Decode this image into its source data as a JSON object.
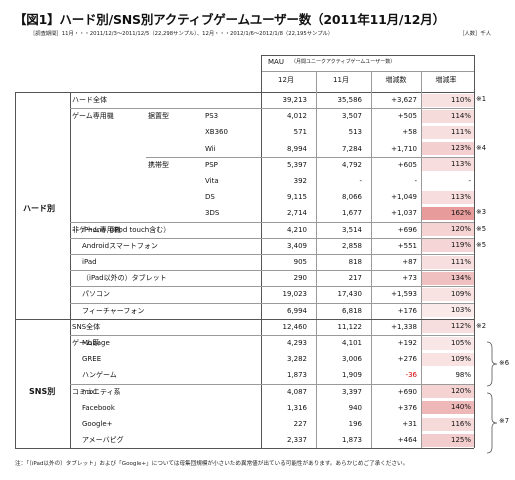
{
  "title": "【図1】ハード別/SNS別アクティブゲームユーザー数（2011年11月/12月）",
  "period": "［調査期間］11月・・・2011/12/3〜2011/12/5（22,298サンプル）、12月・・・2012/1/6〜2012/1/8（22,195サンプル）",
  "unit": "［人数］千人",
  "header": {
    "mau": "MAU",
    "mau_note": "（月間ユニークアクティブゲームユーザー数）",
    "dec": "12月",
    "nov": "11月",
    "diff": "増減数",
    "ratio": "増減率"
  },
  "groups": {
    "hard": "ハード別",
    "sns": "SNS別"
  },
  "rows": [
    {
      "l1": "ハード全体",
      "l2": "",
      "l3": "",
      "dec": "39,213",
      "nov": "35,586",
      "diff": "+3,627",
      "ratio": "110%",
      "r": 1.1,
      "note": "※1"
    },
    {
      "l1": "ゲーム専用機",
      "l2": "据置型",
      "l3": "PS3",
      "dec": "4,012",
      "nov": "3,507",
      "diff": "+505",
      "ratio": "114%",
      "r": 1.14,
      "note": ""
    },
    {
      "l1": "",
      "l2": "",
      "l3": "XB360",
      "dec": "571",
      "nov": "513",
      "diff": "+58",
      "ratio": "111%",
      "r": 1.11,
      "note": ""
    },
    {
      "l1": "",
      "l2": "",
      "l3": "Wii",
      "dec": "8,994",
      "nov": "7,284",
      "diff": "+1,710",
      "ratio": "123%",
      "r": 1.23,
      "note": "※4"
    },
    {
      "l1": "",
      "l2": "携帯型",
      "l3": "PSP",
      "dec": "5,397",
      "nov": "4,792",
      "diff": "+605",
      "ratio": "113%",
      "r": 1.13,
      "note": ""
    },
    {
      "l1": "",
      "l2": "",
      "l3": "Vita",
      "dec": "392",
      "nov": "-",
      "diff": "-",
      "ratio": "-",
      "r": 0,
      "note": ""
    },
    {
      "l1": "",
      "l2": "",
      "l3": "DS",
      "dec": "9,115",
      "nov": "8,066",
      "diff": "+1,049",
      "ratio": "113%",
      "r": 1.13,
      "note": ""
    },
    {
      "l1": "",
      "l2": "",
      "l3": "3DS",
      "dec": "2,714",
      "nov": "1,677",
      "diff": "+1,037",
      "ratio": "162%",
      "r": 1.62,
      "note": "※3"
    },
    {
      "l1": "非ゲーム専用機",
      "l2": "iPhone（iPod touch含む）",
      "l3": "",
      "dec": "4,210",
      "nov": "3,514",
      "diff": "+696",
      "ratio": "120%",
      "r": 1.2,
      "note": "※5"
    },
    {
      "l1": "",
      "l2": "Androidスマートフォン",
      "l3": "",
      "dec": "3,409",
      "nov": "2,858",
      "diff": "+551",
      "ratio": "119%",
      "r": 1.19,
      "note": "※5"
    },
    {
      "l1": "",
      "l2": "iPad",
      "l3": "",
      "dec": "905",
      "nov": "818",
      "diff": "+87",
      "ratio": "111%",
      "r": 1.11,
      "note": ""
    },
    {
      "l1": "",
      "l2": "（iPad以外の）タブレット",
      "l3": "",
      "dec": "290",
      "nov": "217",
      "diff": "+73",
      "ratio": "134%",
      "r": 1.34,
      "note": ""
    },
    {
      "l1": "",
      "l2": "パソコン",
      "l3": "",
      "dec": "19,023",
      "nov": "17,430",
      "diff": "+1,593",
      "ratio": "109%",
      "r": 1.09,
      "note": ""
    },
    {
      "l1": "",
      "l2": "フィーチャーフォン",
      "l3": "",
      "dec": "6,994",
      "nov": "6,818",
      "diff": "+176",
      "ratio": "103%",
      "r": 1.03,
      "note": ""
    },
    {
      "l1": "SNS全体",
      "l2": "",
      "l3": "",
      "dec": "12,460",
      "nov": "11,122",
      "diff": "+1,338",
      "ratio": "112%",
      "r": 1.12,
      "note": "※2"
    },
    {
      "l1": "ゲーム系",
      "l2": "Mobage",
      "l3": "",
      "dec": "4,293",
      "nov": "4,101",
      "diff": "+192",
      "ratio": "105%",
      "r": 1.05,
      "note": ""
    },
    {
      "l1": "",
      "l2": "GREE",
      "l3": "",
      "dec": "3,282",
      "nov": "3,006",
      "diff": "+276",
      "ratio": "109%",
      "r": 1.09,
      "note": ""
    },
    {
      "l1": "",
      "l2": "ハンゲーム",
      "l3": "",
      "dec": "1,873",
      "nov": "1,909",
      "diff": "-36",
      "ratio": "98%",
      "r": 0.98,
      "note": ""
    },
    {
      "l1": "コミュニティ系",
      "l2": "mixi",
      "l3": "",
      "dec": "4,087",
      "nov": "3,397",
      "diff": "+690",
      "ratio": "120%",
      "r": 1.2,
      "note": ""
    },
    {
      "l1": "",
      "l2": "Facebook",
      "l3": "",
      "dec": "1,316",
      "nov": "940",
      "diff": "+376",
      "ratio": "140%",
      "r": 1.4,
      "note": ""
    },
    {
      "l1": "",
      "l2": "Google+",
      "l3": "",
      "dec": "227",
      "nov": "196",
      "diff": "+31",
      "ratio": "116%",
      "r": 1.16,
      "note": ""
    },
    {
      "l1": "",
      "l2": "アメーバピグ",
      "l3": "",
      "dec": "2,337",
      "nov": "1,873",
      "diff": "+464",
      "ratio": "125%",
      "r": 1.25,
      "note": ""
    }
  ],
  "brace_notes": {
    "game": "※6",
    "community": "※7"
  },
  "footnote": "注：「（iPad以外の）タブレット」および「Google+」については母集団規模が小さいため異常値が出ている可能性があります。あらかじめご了承ください。",
  "colors": {
    "rate_low": "#fbeeee",
    "rate_high": "#e79b9b",
    "neg": "#d00000"
  }
}
